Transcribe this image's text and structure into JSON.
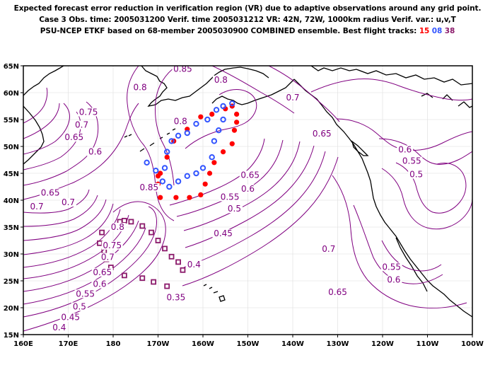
{
  "title": {
    "line1": "Expected forecast error reduction in verification region (VR) due to adaptive observations around any grid point.",
    "line2": "Case 3  Obs. time: 2005031200  Verif. time 2005031212  VR: 42N, 72W, 1000km radius  Verif. var.: u,v,T",
    "line3_prefix": "PSU-NCEP ETKF based on 68-member 2005030900 COMBINED ensemble.  Best flight tracks:",
    "tracks": [
      {
        "label": "15",
        "color": "#ff0000"
      },
      {
        "label": "08",
        "color": "#3355ff"
      },
      {
        "label": "38",
        "color": "#8b1a6b"
      }
    ]
  },
  "map": {
    "lon_ticks": [
      "160E",
      "170E",
      "180",
      "170W",
      "160W",
      "150W",
      "140W",
      "130W",
      "120W",
      "110W",
      "100W"
    ],
    "lat_ticks": [
      "65N",
      "60N",
      "55N",
      "50N",
      "45N",
      "40N",
      "35N",
      "30N",
      "25N",
      "20N",
      "15N"
    ],
    "contour_color": "#800080",
    "contour_labels": [
      {
        "text": "0.85",
        "lon": -164.5,
        "lat": 64.0
      },
      {
        "text": "0.8",
        "lon": -174.0,
        "lat": 60.6
      },
      {
        "text": "0.8",
        "lon": -156.0,
        "lat": 62.0
      },
      {
        "text": "0.75",
        "lon": -185.5,
        "lat": 56.0
      },
      {
        "text": "0.7",
        "lon": -187.0,
        "lat": 53.6
      },
      {
        "text": "0.65",
        "lon": -188.7,
        "lat": 51.3
      },
      {
        "text": "0.6",
        "lon": -184.0,
        "lat": 48.6
      },
      {
        "text": "0.8",
        "lon": -165.0,
        "lat": 54.3
      },
      {
        "text": "0.85",
        "lon": -172.0,
        "lat": 42.0
      },
      {
        "text": "0.65",
        "lon": -194.0,
        "lat": 41.0
      },
      {
        "text": "0.7",
        "lon": -197.0,
        "lat": 38.4
      },
      {
        "text": "0.7",
        "lon": -190.0,
        "lat": 39.2
      },
      {
        "text": "0.65",
        "lon": -149.5,
        "lat": 44.3
      },
      {
        "text": "0.6",
        "lon": -150.0,
        "lat": 41.7
      },
      {
        "text": "0.55",
        "lon": -154.0,
        "lat": 40.2
      },
      {
        "text": "0.5",
        "lon": -153.0,
        "lat": 38.0
      },
      {
        "text": "0.45",
        "lon": -155.5,
        "lat": 33.4
      },
      {
        "text": "0.4",
        "lon": -162.0,
        "lat": 27.6
      },
      {
        "text": "0.35",
        "lon": -166.0,
        "lat": 21.5
      },
      {
        "text": "0.7",
        "lon": -140.0,
        "lat": 58.7
      },
      {
        "text": "0.65",
        "lon": -133.5,
        "lat": 52.0
      },
      {
        "text": "0.6",
        "lon": -115.0,
        "lat": 49.0
      },
      {
        "text": "0.55",
        "lon": -113.5,
        "lat": 46.9
      },
      {
        "text": "0.5",
        "lon": -112.5,
        "lat": 44.4
      },
      {
        "text": "0.7",
        "lon": -132.0,
        "lat": 30.5
      },
      {
        "text": "0.65",
        "lon": -130.0,
        "lat": 22.5
      },
      {
        "text": "0.55",
        "lon": -118.0,
        "lat": 27.2
      },
      {
        "text": "0.6",
        "lon": -117.5,
        "lat": 24.8
      },
      {
        "text": "0.8",
        "lon": -179.0,
        "lat": 34.6
      },
      {
        "text": "0.75",
        "lon": -180.2,
        "lat": 31.2
      },
      {
        "text": "0.7",
        "lon": -181.2,
        "lat": 29.0
      },
      {
        "text": "0.65",
        "lon": -182.4,
        "lat": 26.2
      },
      {
        "text": "0.6",
        "lon": -183.0,
        "lat": 24.0
      },
      {
        "text": "0.55",
        "lon": -186.2,
        "lat": 22.2
      },
      {
        "text": "0.5",
        "lon": -187.5,
        "lat": 19.8
      },
      {
        "text": "0.45",
        "lon": -189.5,
        "lat": 17.8
      },
      {
        "text": "0.4",
        "lon": -192.0,
        "lat": 15.9
      }
    ],
    "red_track": [
      [
        -169.5,
        45.0
      ],
      [
        -168.0,
        48.0
      ],
      [
        -166.5,
        51.0
      ],
      [
        -163.5,
        53.2
      ],
      [
        -160.5,
        55.5
      ],
      [
        -158.0,
        56.0
      ],
      [
        -155.0,
        57.0
      ],
      [
        -153.5,
        57.5
      ],
      [
        -152.5,
        56.0
      ],
      [
        -152.5,
        54.5
      ],
      [
        -153.0,
        53.0
      ],
      [
        -153.5,
        50.5
      ],
      [
        -155.5,
        49.0
      ],
      [
        -157.5,
        47.0
      ],
      [
        -158.5,
        45.0
      ],
      [
        -159.5,
        43.0
      ],
      [
        -160.5,
        41.0
      ],
      [
        -163.0,
        40.5
      ],
      [
        -166.0,
        40.5
      ],
      [
        -169.5,
        40.5
      ],
      [
        -170.0,
        43.0
      ],
      [
        -170.0,
        44.5
      ]
    ],
    "blue_track": [
      [
        -168.5,
        46.0
      ],
      [
        -168.0,
        49.0
      ],
      [
        -167.0,
        51.0
      ],
      [
        -165.5,
        52.0
      ],
      [
        -163.5,
        52.5
      ],
      [
        -161.5,
        54.2
      ],
      [
        -159.0,
        55.0
      ],
      [
        -157.0,
        56.8
      ],
      [
        -155.5,
        57.5
      ],
      [
        -153.5,
        58.0
      ],
      [
        -155.5,
        55.0
      ],
      [
        -156.5,
        53.0
      ],
      [
        -157.5,
        51.0
      ],
      [
        -158.0,
        48.0
      ],
      [
        -160.0,
        46.0
      ],
      [
        -161.5,
        45.0
      ],
      [
        -163.5,
        44.5
      ],
      [
        -165.5,
        43.5
      ],
      [
        -167.5,
        42.5
      ],
      [
        -169.0,
        43.5
      ],
      [
        -170.5,
        45.5
      ],
      [
        -172.5,
        47.0
      ]
    ],
    "purple_track": [
      [
        -178.5,
        36.0
      ],
      [
        -177.5,
        36.2
      ],
      [
        -176.0,
        36.0
      ],
      [
        -173.5,
        35.2
      ],
      [
        -171.5,
        34.0
      ],
      [
        -170.0,
        32.5
      ],
      [
        -168.5,
        31.0
      ],
      [
        -167.0,
        29.5
      ],
      [
        -165.5,
        28.5
      ],
      [
        -164.5,
        27.0
      ],
      [
        -168.0,
        24.0
      ],
      [
        -171.0,
        24.8
      ],
      [
        -173.5,
        25.5
      ],
      [
        -177.5,
        26.0
      ],
      [
        -180.5,
        27.5
      ],
      [
        -181.5,
        29.0
      ],
      [
        -182.0,
        30.5
      ],
      [
        -183.0,
        32.0
      ],
      [
        -182.5,
        34.0
      ]
    ]
  }
}
